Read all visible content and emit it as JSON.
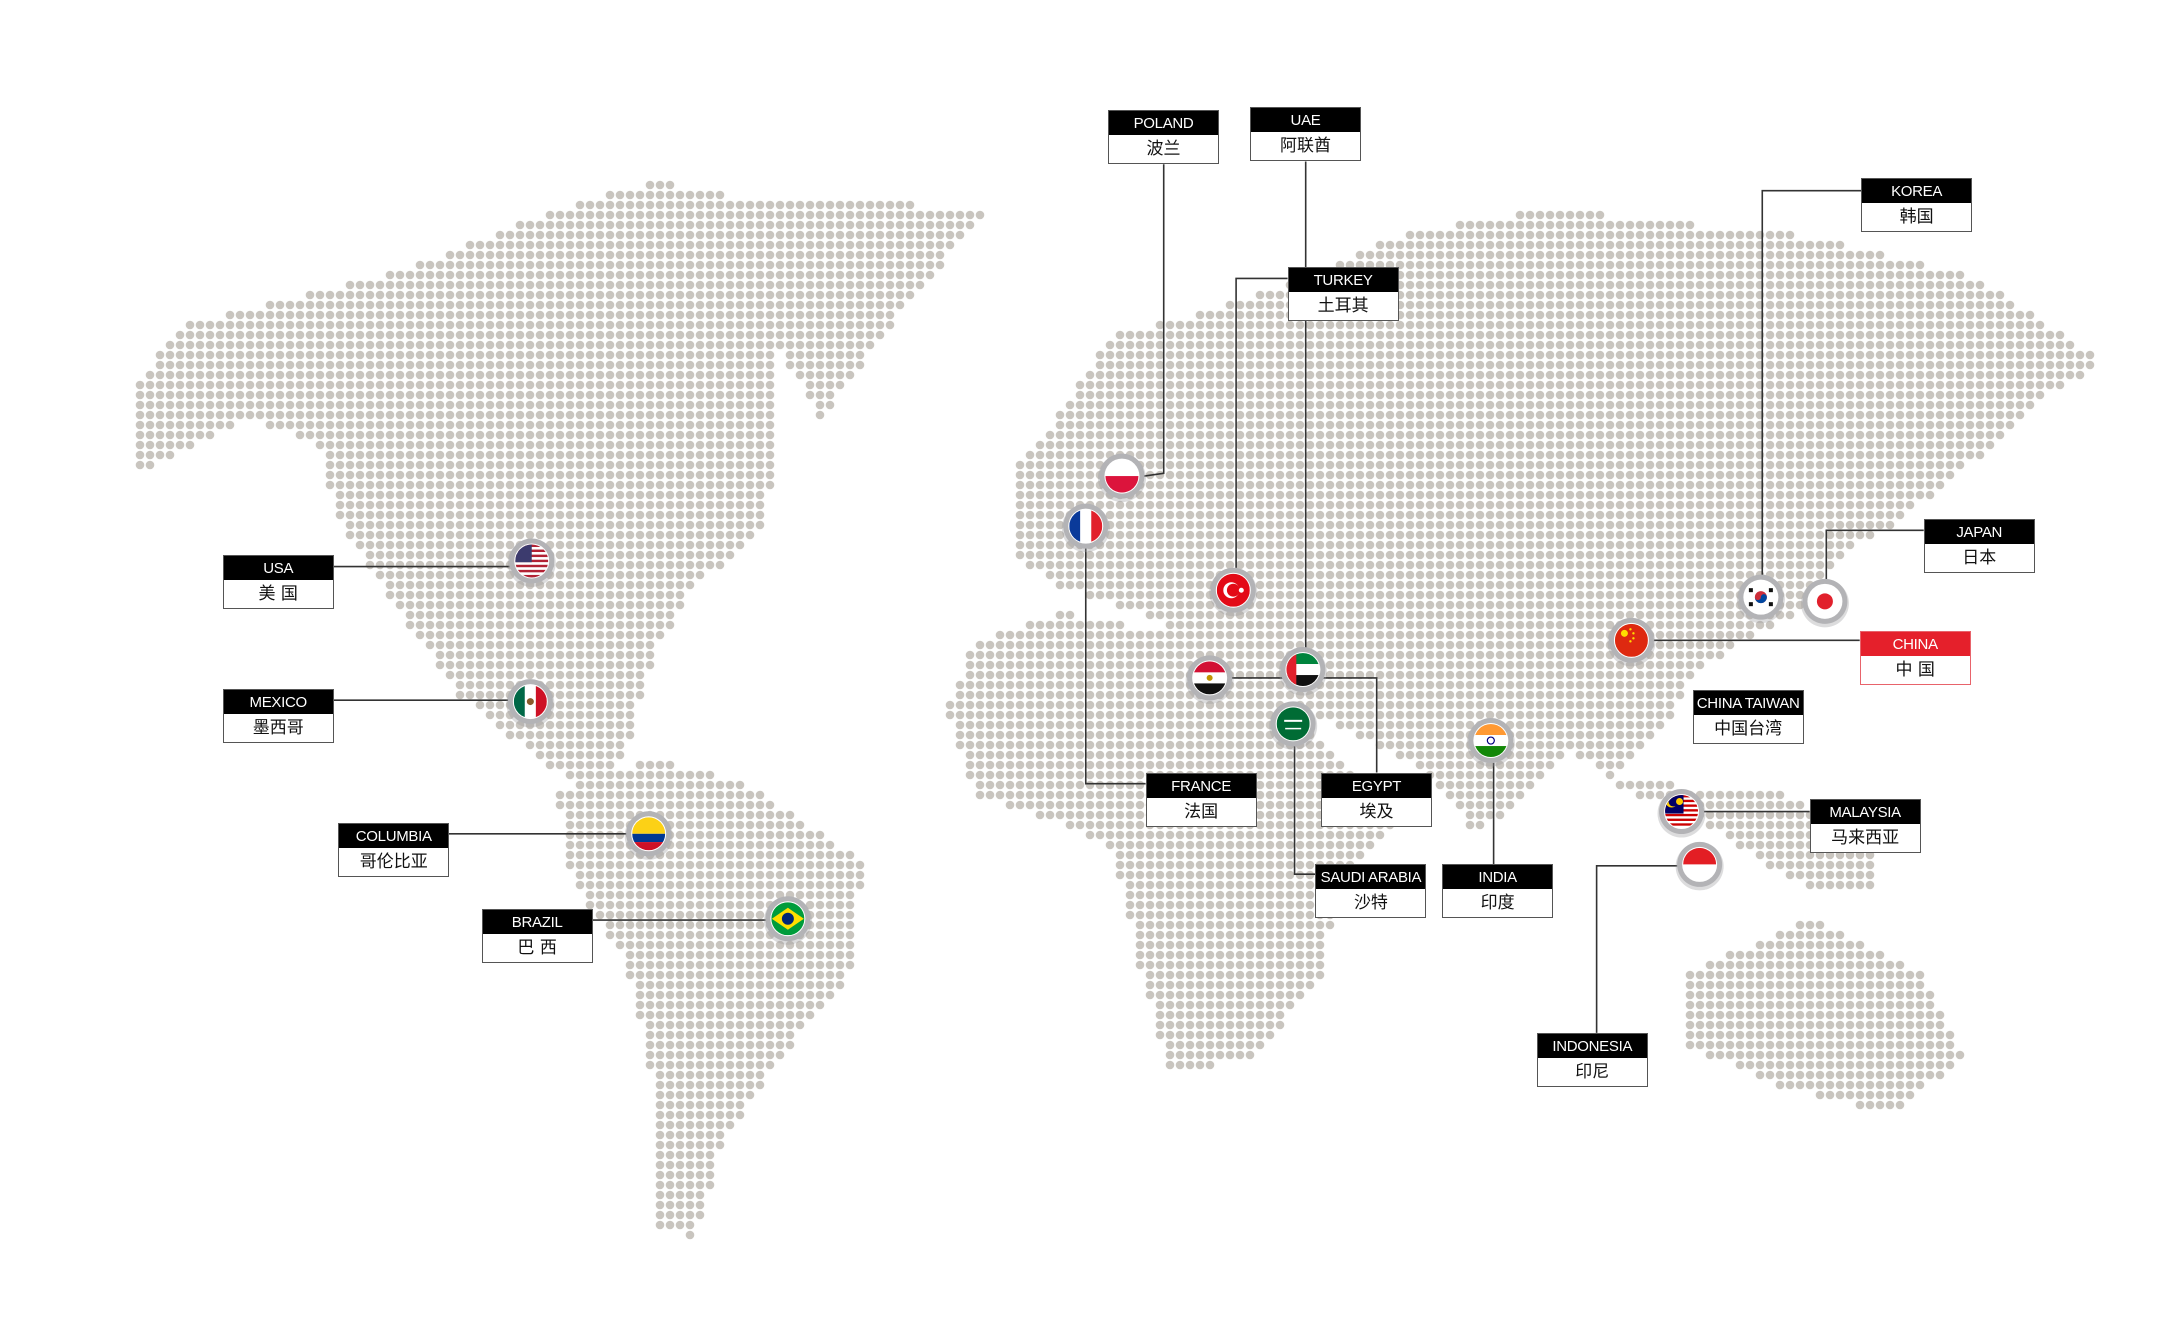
{
  "colors": {
    "dot": "#c9c5bf",
    "line": "#333333",
    "label_header": "#000000",
    "highlight": "#e5202b",
    "flag_ring": "#b3b3b6"
  },
  "locations": [
    {
      "id": "poland",
      "en": "POLAND",
      "zh": "波兰",
      "flag": "poland-flag"
    },
    {
      "id": "uae",
      "en": "UAE",
      "zh": "阿联酋",
      "flag": "uae-flag"
    },
    {
      "id": "turkey",
      "en": "TURKEY",
      "zh": "土耳其",
      "flag": "turkey-flag"
    },
    {
      "id": "korea",
      "en": "KOREA",
      "zh": "韩国",
      "flag": "korea-flag"
    },
    {
      "id": "japan",
      "en": "JAPAN",
      "zh": "日本",
      "flag": "japan-flag"
    },
    {
      "id": "china",
      "en": "CHINA",
      "zh": "中 国",
      "flag": "china-flag",
      "highlight": true
    },
    {
      "id": "china-taiwan",
      "en": "CHINA TAIWAN",
      "zh": "中国台湾"
    },
    {
      "id": "malaysia",
      "en": "MALAYSIA",
      "zh": "马来西亚",
      "flag": "malaysia-flag"
    },
    {
      "id": "indonesia",
      "en": "INDONESIA",
      "zh": "印尼",
      "flag": "indonesia-flag"
    },
    {
      "id": "india",
      "en": "INDIA",
      "zh": "印度",
      "flag": "india-flag"
    },
    {
      "id": "saudi-arabia",
      "en": "SAUDI ARABIA",
      "zh": "沙特",
      "flag": "saudi-arabia-flag"
    },
    {
      "id": "egypt",
      "en": "EGYPT",
      "zh": "埃及",
      "flag": "egypt-flag"
    },
    {
      "id": "france",
      "en": "FRANCE",
      "zh": "法国",
      "flag": "france-flag"
    },
    {
      "id": "usa",
      "en": "USA",
      "zh": "美 国",
      "flag": "usa-flag"
    },
    {
      "id": "mexico",
      "en": "MEXICO",
      "zh": "墨西哥",
      "flag": "mexico-flag"
    },
    {
      "id": "columbia",
      "en": "COLUMBIA",
      "zh": "哥伦比亚",
      "flag": "colombia-flag"
    },
    {
      "id": "brazil",
      "en": "BRAZIL",
      "zh": "巴 西",
      "flag": "brazil-flag"
    }
  ]
}
